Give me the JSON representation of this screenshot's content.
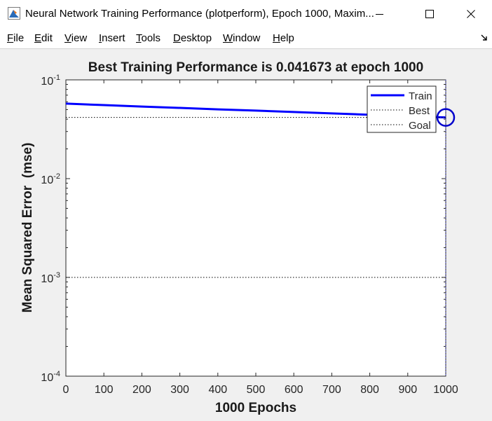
{
  "window": {
    "title": "Neural Network Training Performance (plotperform), Epoch 1000, Maxim..."
  },
  "menu": {
    "items": [
      {
        "mnemonic": "F",
        "rest": "ile"
      },
      {
        "mnemonic": "E",
        "rest": "dit"
      },
      {
        "mnemonic": "V",
        "rest": "iew"
      },
      {
        "mnemonic": "I",
        "rest": "nsert"
      },
      {
        "mnemonic": "T",
        "rest": "ools"
      },
      {
        "mnemonic": "D",
        "rest": "esktop"
      },
      {
        "mnemonic": "W",
        "rest": "indow"
      },
      {
        "mnemonic": "H",
        "rest": "elp"
      }
    ]
  },
  "icons": {
    "app": "matlab-figure-icon",
    "minimize": "minimize-icon",
    "maximize": "maximize-icon",
    "close": "close-icon",
    "dock": "dock-arrow-icon"
  },
  "chart_data": {
    "type": "line",
    "title": "Best Training Performance is 0.041673 at epoch 1000",
    "xlabel": "1000 Epochs",
    "ylabel": "Mean Squared Error  (mse)",
    "xlim": [
      0,
      1000
    ],
    "ylim": [
      0.0001,
      0.1
    ],
    "yscale": "log",
    "x_ticks": [
      "0",
      "100",
      "200",
      "300",
      "400",
      "500",
      "600",
      "700",
      "800",
      "900",
      "1000"
    ],
    "y_ticks": [
      {
        "base": "10",
        "exp": "-4"
      },
      {
        "base": "10",
        "exp": "-3"
      },
      {
        "base": "10",
        "exp": "-2"
      },
      {
        "base": "10",
        "exp": "-1"
      }
    ],
    "series": [
      {
        "name": "Train",
        "style": "solid",
        "color": "#0000ff",
        "x": [
          0,
          100,
          200,
          300,
          400,
          500,
          600,
          700,
          800,
          900,
          1000
        ],
        "y": [
          0.0575,
          0.0555,
          0.0537,
          0.052,
          0.0503,
          0.0488,
          0.0473,
          0.0458,
          0.0443,
          0.0429,
          0.041673
        ]
      },
      {
        "name": "Best",
        "style": "dotted",
        "color": "#000000",
        "hline": 0.041673,
        "vline": 1000
      },
      {
        "name": "Goal",
        "style": "dotted",
        "color": "#000000",
        "hline": 0.001
      }
    ],
    "best_point": {
      "x": 1000,
      "y": 0.041673
    },
    "legend_position": "top-right",
    "grid": false
  }
}
